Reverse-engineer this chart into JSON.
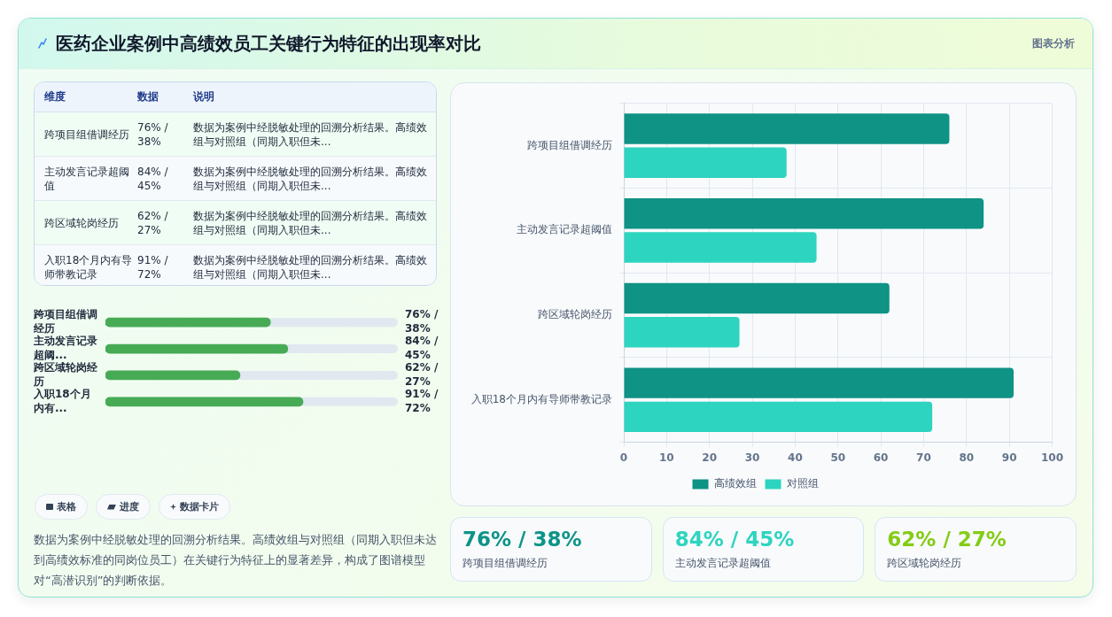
{
  "chart_data": [
    {
      "type": "other",
      "title": "医药企业案例中高绩效员工关键行为特征的出现率对比",
      "annotations": [
        "图表分析"
      ]
    },
    {
      "type": "bar",
      "orientation": "horizontal",
      "categories": [
        "跨项目组借调经历",
        "主动发言记录超阈值",
        "跨区域轮岗经历",
        "入职18个月内有导师带教记录"
      ],
      "series": [
        {
          "name": "高绩效组",
          "color": "#0e9384",
          "values": [
            76,
            84,
            62,
            91
          ]
        },
        {
          "name": "对照组",
          "color": "#2dd4bf",
          "values": [
            38,
            45,
            27,
            72
          ]
        }
      ],
      "xlim": [
        0,
        100
      ],
      "xticks": [
        0,
        10,
        20,
        30,
        40,
        50,
        60,
        70,
        80,
        90,
        100
      ],
      "grid": true,
      "legend": "bottom"
    },
    {
      "type": "other",
      "categories": [
        "跨项目组借调经历",
        "主动发言记录超阈值",
        "跨区域轮岗经历",
        "入职18个月内有导师带教记录"
      ],
      "value_labels": [
        "76% / 38%",
        "84% / 45%",
        "62% / 27%",
        "91% / 72%"
      ],
      "annotations": [
        "维度",
        "数据",
        "说明",
        "数据为案例中经脱敏处理的回溯分析结果。高绩效组与对照组（同期入职但未...",
        "数据为案例中经脱敏处理的回溯分析结果。高绩效组与对照组（同期入职但未...",
        "数据为案例中经脱敏处理的回溯分析结果。高绩效组与对照组（同期入职但未...",
        "数据为案例中经脱敏处理的回溯分析结果。高绩效组与对照组（同期入职但未..."
      ]
    },
    {
      "type": "bar",
      "orientation": "horizontal",
      "tick_labels": "y",
      "categories": [
        "跨项目组借调经历",
        "主动发言记录超阈...",
        "跨区域轮岗经历",
        "入职18个月内有..."
      ],
      "values": [
        76,
        84,
        62,
        91
      ],
      "color": "#47ab55",
      "value_labels": [
        "76% / 38%",
        "84% / 45%",
        "62% / 27%",
        "91% / 72%"
      ]
    },
    {
      "type": "other",
      "categories": [
        "表格",
        "进度",
        "数据卡片"
      ],
      "annotations": [
        "数据为案例中经脱敏处理的回溯分析结果。高绩效组与对照组（同期入职但未达到高绩效标准的同岗位员工）在关键行为特征上的显著差异，构成了图谱模型对“高潜识别”的判断依据。"
      ]
    },
    {
      "type": "other",
      "categories": [
        "跨项目组借调经历",
        "主动发言记录超阈值",
        "跨区域轮岗经历"
      ],
      "value_labels": [
        "76% / 38%",
        "84% / 45%",
        "62% / 27%"
      ]
    }
  ]
}
